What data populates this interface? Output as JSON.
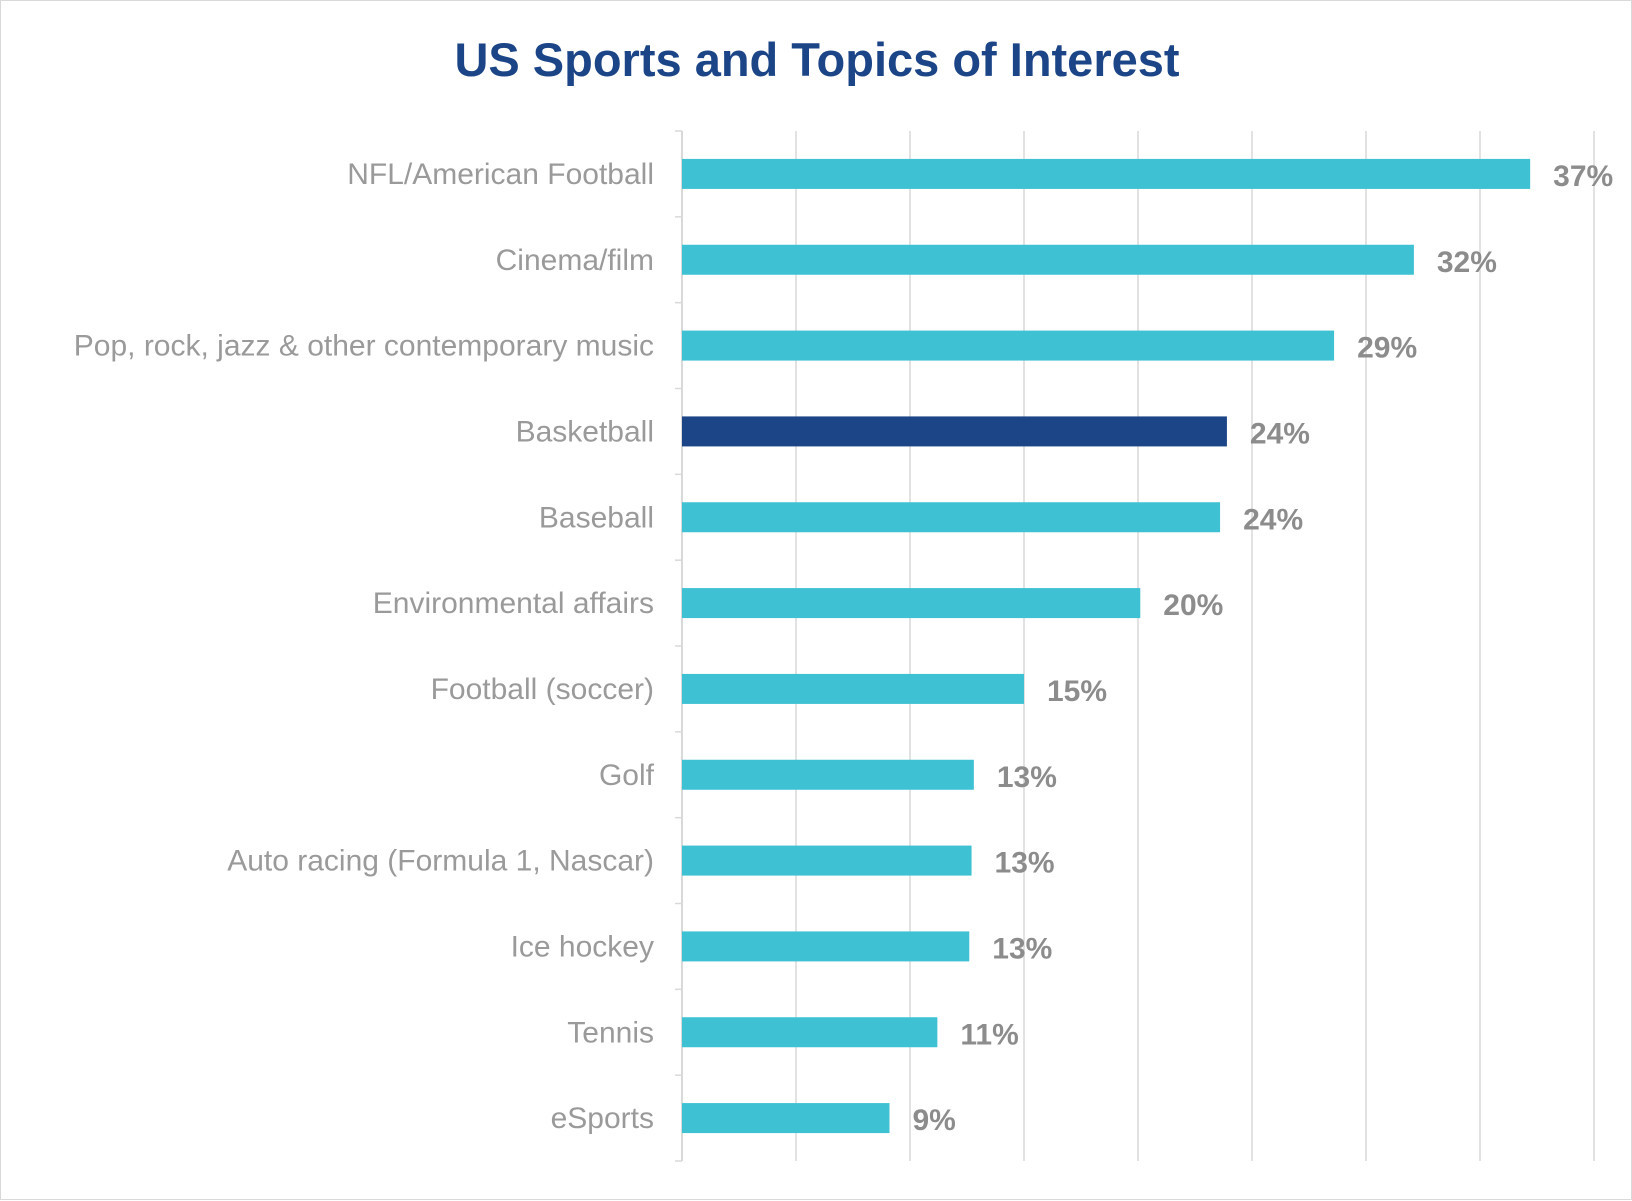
{
  "chart_data": {
    "type": "bar",
    "orientation": "horizontal",
    "title": "US Sports and Topics of Interest",
    "xlabel": "",
    "ylabel": "",
    "xlim": [
      0,
      40
    ],
    "grid": true,
    "legend": "none",
    "categories": [
      "NFL/American Football",
      "Cinema/film",
      "Pop, rock, jazz & other contemporary music",
      "Basketball",
      "Baseball",
      "Environmental affairs",
      "Football (soccer)",
      "Golf",
      "Auto racing (Formula 1, Nascar)",
      "Ice hockey",
      "Tennis",
      "eSports"
    ],
    "values": [
      37.2,
      32.1,
      28.6,
      23.9,
      23.6,
      20.1,
      15.0,
      12.8,
      12.7,
      12.6,
      11.2,
      9.1
    ],
    "data_labels": [
      "37%",
      "32%",
      "29%",
      "24%",
      "24%",
      "20%",
      "15%",
      "13%",
      "13%",
      "13%",
      "11%",
      "9%"
    ],
    "highlight_index": 3,
    "colors": {
      "bar": "#3dc1d3",
      "highlight": "#1c4587",
      "title": "#1c4587",
      "category_text": "#9a9a9a",
      "value_text": "#8c8c8c",
      "grid": "#d9d9d9"
    }
  }
}
